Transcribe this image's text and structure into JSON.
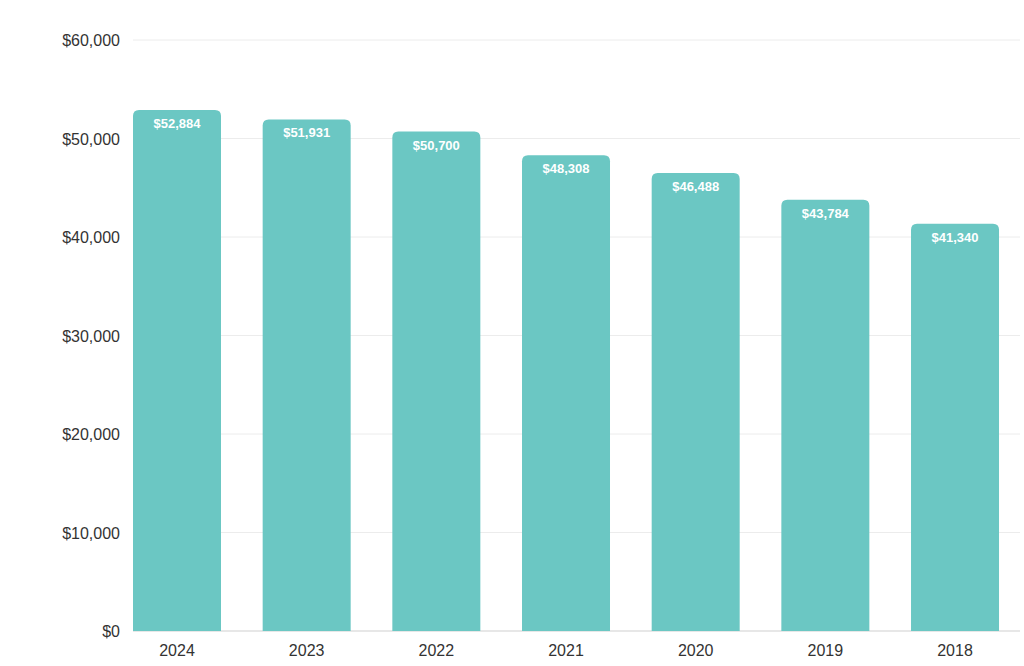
{
  "chart_data": {
    "type": "bar",
    "categories": [
      "2024",
      "2023",
      "2022",
      "2021",
      "2020",
      "2019",
      "2018"
    ],
    "values": [
      52884,
      51931,
      50700,
      48308,
      46488,
      43784,
      41340
    ],
    "value_labels": [
      "$52,884",
      "$51,931",
      "$50,700",
      "$48,308",
      "$46,488",
      "$43,784",
      "$41,340"
    ],
    "data_labels": true,
    "color": "#6bc7c3",
    "ylim": [
      0,
      60000
    ],
    "yticks": [
      {
        "value": 0,
        "label": "$0"
      },
      {
        "value": 10000,
        "label": "$10,000"
      },
      {
        "value": 20000,
        "label": "$20,000"
      },
      {
        "value": 30000,
        "label": "$30,000"
      },
      {
        "value": 40000,
        "label": "$40,000"
      },
      {
        "value": 50000,
        "label": "$50,000"
      },
      {
        "value": 60000,
        "label": "$60,000"
      }
    ],
    "grid": true
  }
}
